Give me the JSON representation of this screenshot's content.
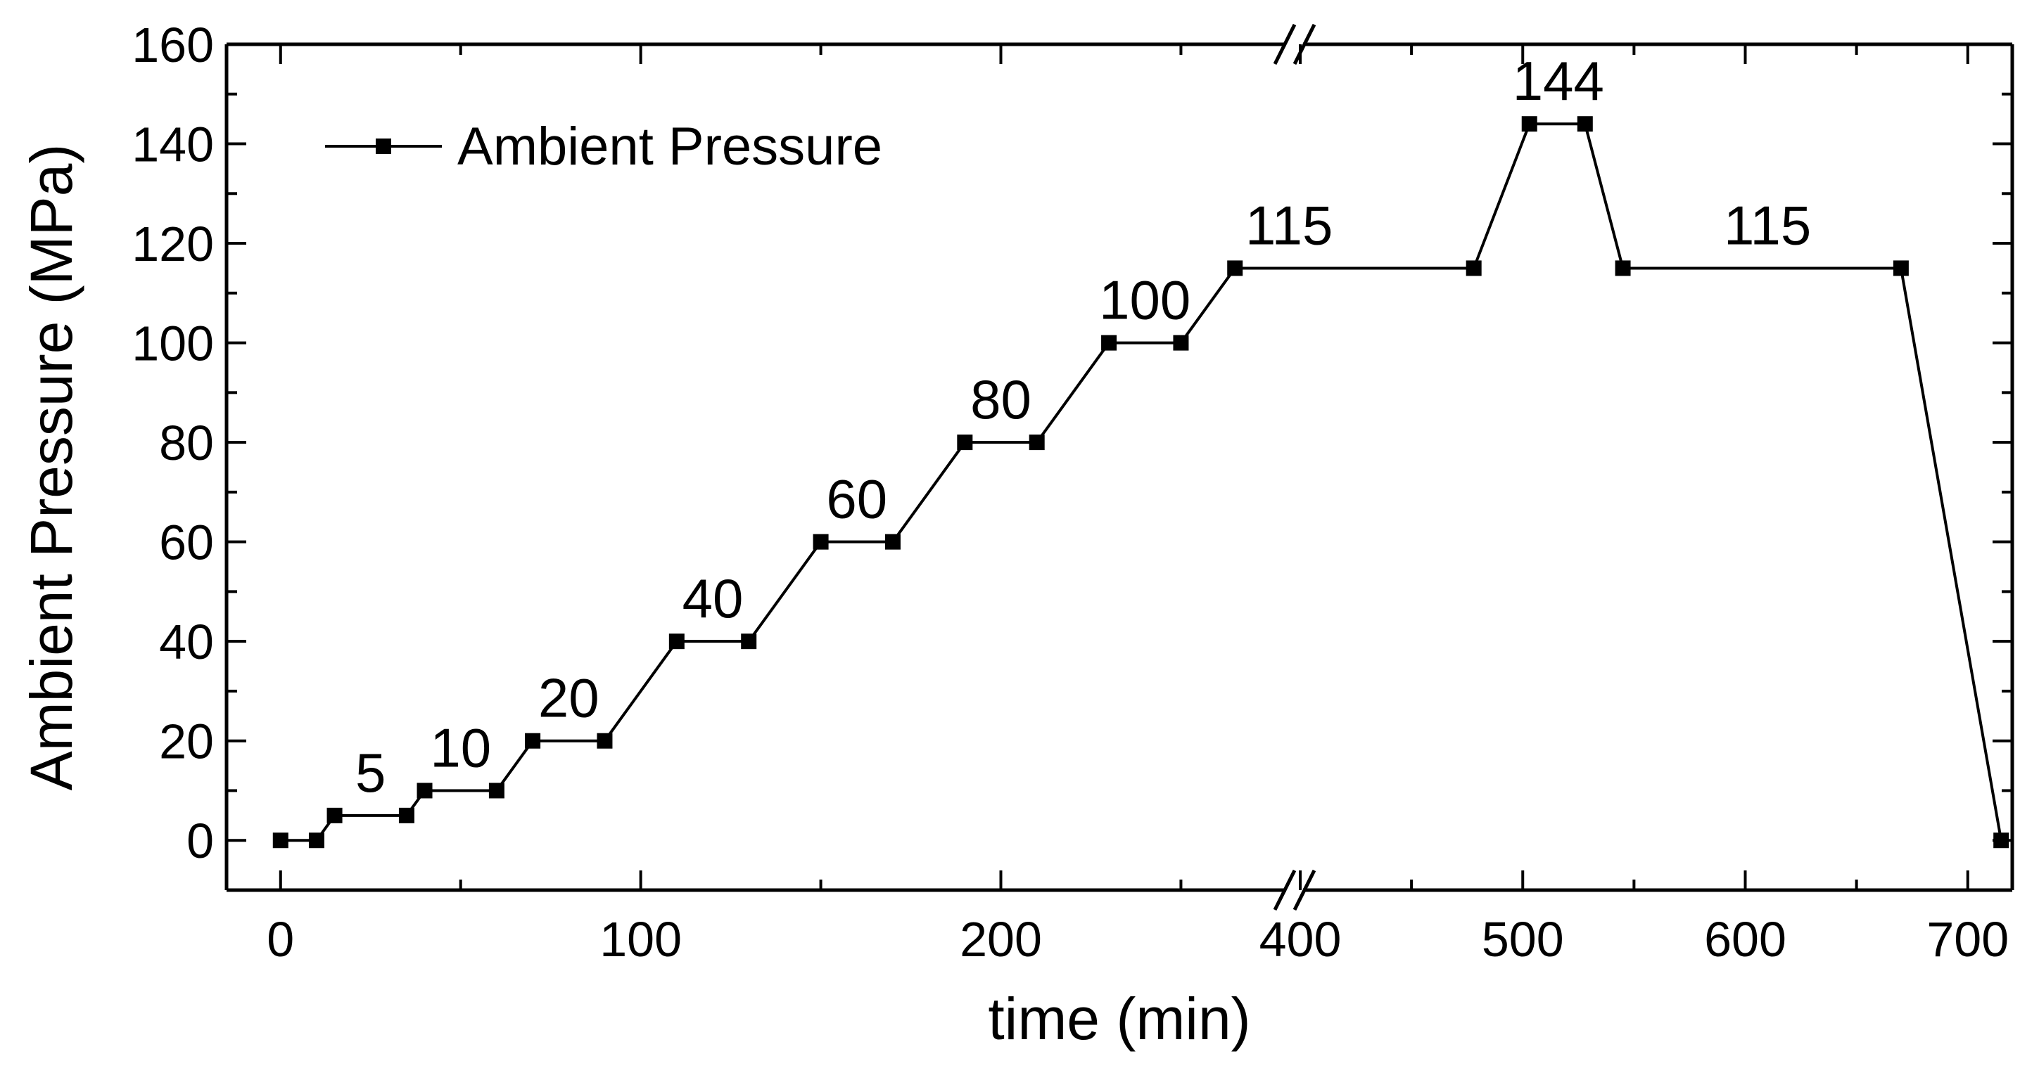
{
  "chart_data": {
    "type": "line",
    "xlabel": "time (min)",
    "ylabel": "Ambient Pressure (MPa)",
    "title": "",
    "ylim": [
      -10,
      160
    ],
    "y_ticks": [
      "0",
      "20",
      "40",
      "60",
      "80",
      "100",
      "120",
      "140",
      "160"
    ],
    "x_axis_break": {
      "before": 280,
      "after": 400
    },
    "x_segments": [
      [
        -15,
        280
      ],
      [
        400,
        720
      ]
    ],
    "x_ticks": [
      "0",
      "100",
      "200",
      "400",
      "500",
      "600",
      "700"
    ],
    "legend": {
      "label": "Ambient Pressure",
      "position": "top-left"
    },
    "grid": false,
    "series": [
      {
        "name": "Ambient Pressure",
        "x": [
          0,
          10,
          15,
          35,
          40,
          60,
          70,
          90,
          110,
          130,
          150,
          170,
          190,
          210,
          230,
          250,
          265,
          478,
          503,
          528,
          545,
          670,
          715
        ],
        "y": [
          0,
          0,
          5,
          5,
          10,
          10,
          20,
          20,
          40,
          40,
          60,
          60,
          80,
          80,
          100,
          100,
          115,
          115,
          144,
          144,
          115,
          115,
          0
        ]
      }
    ],
    "annotations": [
      {
        "text": "5",
        "x": 25,
        "y": 5
      },
      {
        "text": "10",
        "x": 50,
        "y": 10
      },
      {
        "text": "20",
        "x": 80,
        "y": 20
      },
      {
        "text": "40",
        "x": 120,
        "y": 40
      },
      {
        "text": "60",
        "x": 160,
        "y": 60
      },
      {
        "text": "80",
        "x": 200,
        "y": 80
      },
      {
        "text": "100",
        "x": 240,
        "y": 100
      },
      {
        "text": "115",
        "x": 395,
        "y": 115
      },
      {
        "text": "144",
        "x": 516,
        "y": 144
      },
      {
        "text": "115",
        "x": 610,
        "y": 115
      }
    ],
    "colors": {
      "line": "#000000",
      "marker": "#000000",
      "axes": "#000000"
    }
  }
}
